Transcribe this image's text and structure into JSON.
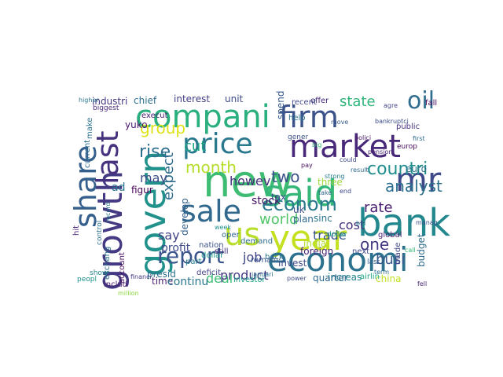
{
  "words": [
    {
      "text": "new",
      "color": "#3fbc73"
    },
    {
      "text": "said",
      "color": "#35b779"
    },
    {
      "text": "year",
      "color": "#c5e021"
    },
    {
      "text": "bank",
      "color": "#23888e"
    },
    {
      "text": "compani",
      "color": "#2ab07f"
    },
    {
      "text": "firm",
      "color": "#3b528b"
    },
    {
      "text": "market",
      "color": "#482878"
    },
    {
      "text": "price",
      "color": "#2a788e"
    },
    {
      "text": "sale",
      "color": "#31688e"
    },
    {
      "text": "us",
      "color": "#b8de29"
    },
    {
      "text": "growth",
      "color": "#443983"
    },
    {
      "text": "govern",
      "color": "#21918c"
    },
    {
      "text": "economi",
      "color": "#2c728e"
    },
    {
      "text": "mr",
      "color": "#3e4989"
    },
    {
      "text": "share",
      "color": "#355f8d"
    },
    {
      "text": "last",
      "color": "#46327e"
    },
    {
      "text": "oil",
      "color": "#2f6c8e"
    },
    {
      "text": "econom",
      "color": "#297a8e"
    },
    {
      "text": "report",
      "color": "#3a548c"
    },
    {
      "text": "countri",
      "color": "#218f8d"
    },
    {
      "text": "analyst",
      "color": "#2d708e"
    },
    {
      "text": "rise",
      "color": "#2d708e"
    },
    {
      "text": "month",
      "color": "#b5de2b"
    },
    {
      "text": "state",
      "color": "#31b57b"
    },
    {
      "text": "two",
      "color": "#3b528b"
    },
    {
      "text": "cut",
      "color": "#20a486"
    },
    {
      "text": "expect",
      "color": "#2e6d8e"
    },
    {
      "text": "howev",
      "color": "#472f7d"
    },
    {
      "text": "group",
      "color": "#dde318"
    },
    {
      "text": "world",
      "color": "#52c569"
    },
    {
      "text": "rate",
      "color": "#481c6e"
    },
    {
      "text": "one",
      "color": "#453781"
    },
    {
      "text": "busi",
      "color": "#38588c"
    },
    {
      "text": "cost",
      "color": "#46307e"
    },
    {
      "text": "may",
      "color": "#3e4c8a"
    },
    {
      "text": "ad",
      "color": "#2a768e"
    },
    {
      "text": "say",
      "color": "#414487"
    },
    {
      "text": "job",
      "color": "#404688"
    },
    {
      "text": "deal",
      "color": "#3dbc74"
    },
    {
      "text": "product",
      "color": "#443a83"
    },
    {
      "text": "trade",
      "color": "#3a548c"
    },
    {
      "text": "stock",
      "color": "#471365"
    },
    {
      "text": "profit",
      "color": "#3e4989"
    },
    {
      "text": "develop",
      "color": "#34618d"
    },
    {
      "text": "time",
      "color": "#481f70"
    },
    {
      "text": "continu",
      "color": "#2a768e"
    },
    {
      "text": "chief",
      "color": "#2e6e8e"
    },
    {
      "text": "interest",
      "color": "#424086"
    },
    {
      "text": "unit",
      "color": "#3e4a89"
    },
    {
      "text": "industri",
      "color": "#453581"
    },
    {
      "text": "yuko",
      "color": "#481467"
    },
    {
      "text": "figur",
      "color": "#440154"
    },
    {
      "text": "tax",
      "color": "#3b518b"
    },
    {
      "text": "plan",
      "color": "#31688e"
    },
    {
      "text": "three",
      "color": "#9dd93b"
    },
    {
      "text": "offer",
      "color": "#472a7a"
    },
    {
      "text": "fall",
      "color": "#46075a"
    },
    {
      "text": "euro",
      "color": "#2c738e"
    },
    {
      "text": "spend",
      "color": "#375a8c"
    },
    {
      "text": "uk",
      "color": "#3d4e8a"
    },
    {
      "text": "sinc",
      "color": "#2b758e"
    },
    {
      "text": "increas",
      "color": "#25848e"
    },
    {
      "text": "quarter",
      "color": "#306a8e"
    },
    {
      "text": "china",
      "color": "#c2df23"
    },
    {
      "text": "invest",
      "color": "#3e4a89"
    },
    {
      "text": "india",
      "color": "#b0dd2f"
    },
    {
      "text": "foreign",
      "color": "#482173"
    },
    {
      "text": "budget",
      "color": "#2f6b8e"
    },
    {
      "text": "deficit",
      "color": "#414287"
    },
    {
      "text": "dollar",
      "color": "#1f9a8a"
    },
    {
      "text": "presid",
      "color": "#2e6f8e"
    },
    {
      "text": "hit",
      "color": "#482576"
    },
    {
      "text": "includ",
      "color": "#481d6f"
    },
    {
      "text": "recent",
      "color": "#3f4889"
    },
    {
      "text": "help",
      "color": "#2c718e"
    },
    {
      "text": "next",
      "color": "#3e4c8a"
    },
    {
      "text": "demand",
      "color": "#2e6d8e"
    },
    {
      "text": "airlin",
      "color": "#22a785"
    },
    {
      "text": "investor",
      "color": "#1fa188"
    },
    {
      "text": "nation",
      "color": "#3b528b"
    },
    {
      "text": "oper",
      "color": "#31678e"
    },
    {
      "text": "still",
      "color": "#46307e"
    },
    {
      "text": "back",
      "color": "#2c738e"
    },
    {
      "text": "remain",
      "color": "#3a548c"
    },
    {
      "text": "part",
      "color": "#27808e"
    },
    {
      "text": "execut",
      "color": "#482173"
    },
    {
      "text": "made",
      "color": "#404588"
    },
    {
      "text": "make",
      "color": "#2c728e"
    },
    {
      "text": "current",
      "color": "#2f6c8e"
    },
    {
      "text": "account",
      "color": "#470d60"
    },
    {
      "text": "exchang",
      "color": "#2c728e"
    },
    {
      "text": "biggest",
      "color": "#482878"
    },
    {
      "text": "financi",
      "color": "#453882"
    },
    {
      "text": "global",
      "color": "#481c6e"
    },
    {
      "text": "gener",
      "color": "#3b528b"
    },
    {
      "text": "move",
      "color": "#37598c"
    },
    {
      "text": "public",
      "color": "#46337f"
    },
    {
      "text": "first",
      "color": "#2e6d8e"
    },
    {
      "text": "control",
      "color": "#2d708e"
    },
    {
      "text": "peopl",
      "color": "#218e8d"
    },
    {
      "text": "show",
      "color": "#26828e"
    },
    {
      "text": "week",
      "color": "#20928c"
    },
    {
      "text": "million",
      "color": "#8fd744"
    },
    {
      "text": "bankruptci",
      "color": "#3d4d8a"
    },
    {
      "text": "agre",
      "color": "#414487"
    },
    {
      "text": "europ",
      "color": "#46085c"
    },
    {
      "text": "higher",
      "color": "#2b758e"
    },
    {
      "text": "record",
      "color": "#2a788e"
    },
    {
      "text": "polici",
      "color": "#481467"
    },
    {
      "text": "dollar",
      "color": "#1f9a8a"
    },
    {
      "text": "could",
      "color": "#3f4788"
    },
    {
      "text": "last",
      "color": "#355f8d"
    },
    {
      "text": "big",
      "color": "#38b977"
    },
    {
      "text": "pay",
      "color": "#471063"
    },
    {
      "text": "strong",
      "color": "#287c8e"
    },
    {
      "text": "bid",
      "color": "#24868e"
    },
    {
      "text": "call",
      "color": "#37b878"
    },
    {
      "text": "pension",
      "color": "#482071"
    },
    {
      "text": "term",
      "color": "#2e6e8e"
    },
    {
      "text": "manag",
      "color": "#3b528b"
    },
    {
      "text": "fell",
      "color": "#482576"
    },
    {
      "text": "januari",
      "color": "#2c718e"
    },
    {
      "text": "power",
      "color": "#3e4c8a"
    },
    {
      "text": "take",
      "color": "#31678e"
    },
    {
      "text": "end",
      "color": "#404588"
    },
    {
      "text": "result",
      "color": "#2f6b8e"
    },
    {
      "text": "lower",
      "color": "#2d708e"
    }
  ]
}
